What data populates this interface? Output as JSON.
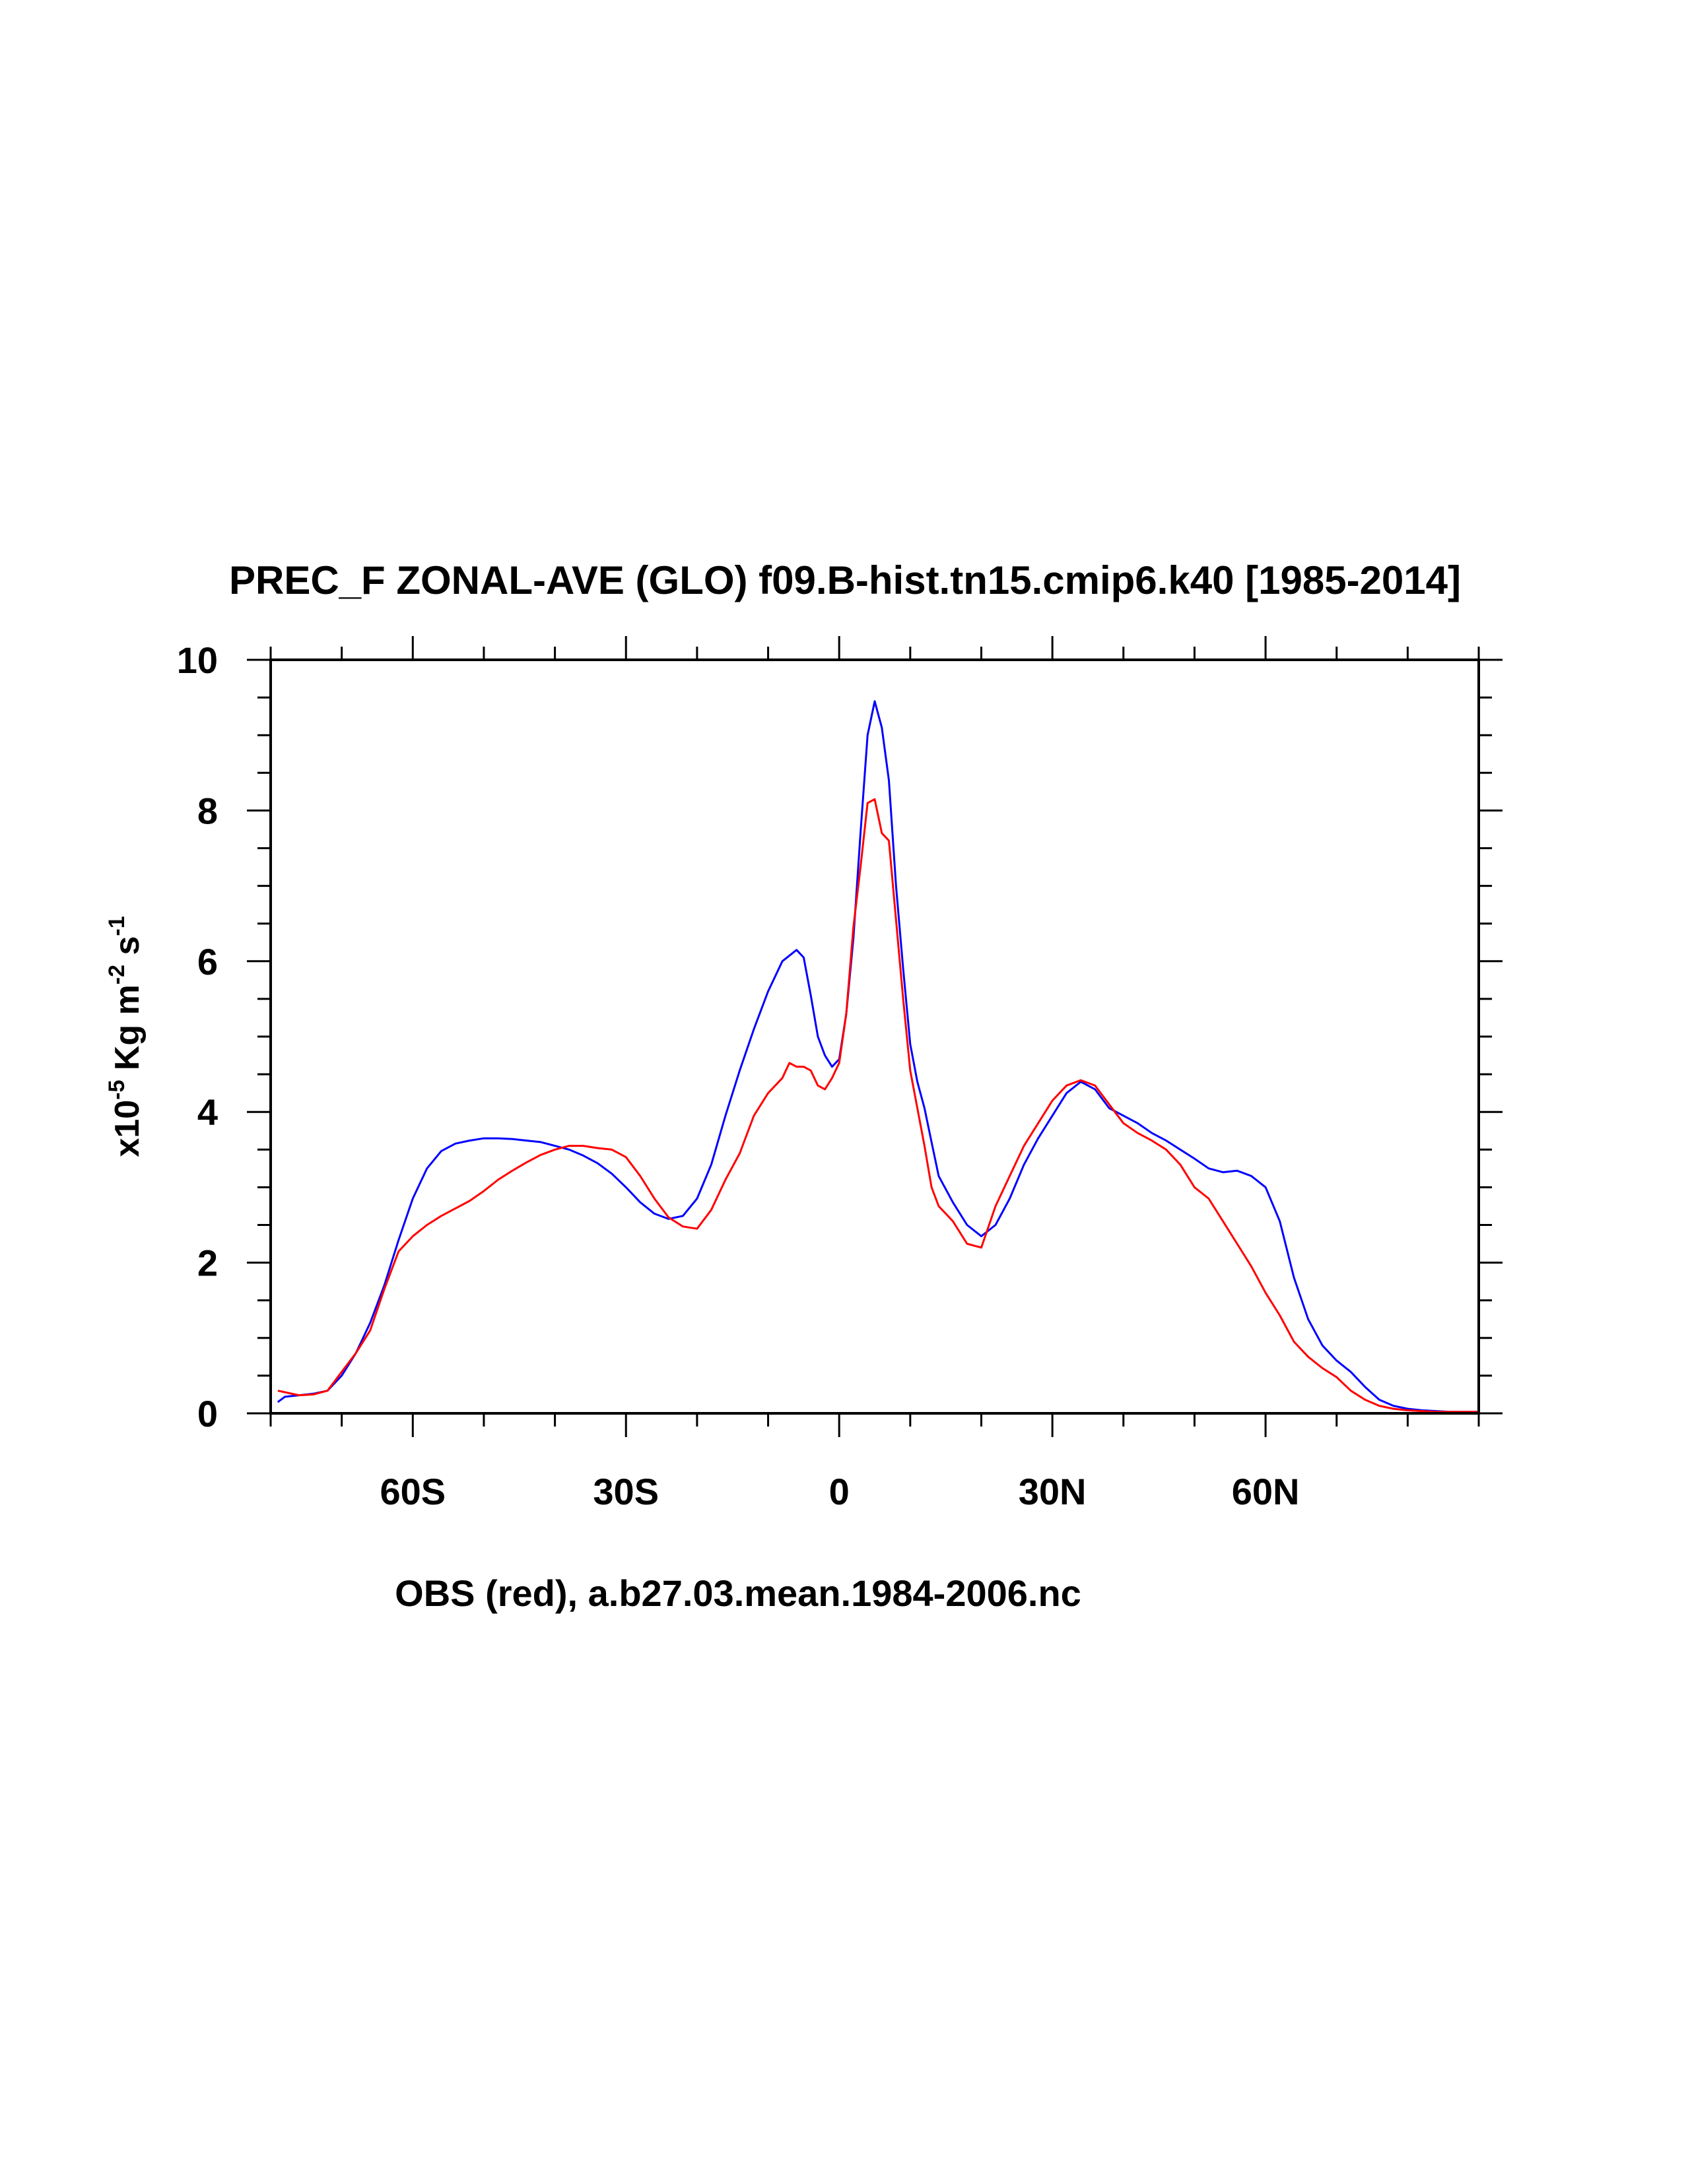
{
  "chart_data": {
    "type": "line",
    "title": "PREC_F ZONAL-AVE (GLO) f09.B-hist.tn15.cmip6.k40 [1985-2014]",
    "xlabel": "OBS (red), a.b27.03.mean.1984-2006.nc",
    "ylabel": {
      "base": "x10",
      "exp1": "-5",
      "mid": " Kg m",
      "exp2": "-2",
      "mid2": " s",
      "exp3": "-1"
    },
    "xlim": [
      -80,
      90
    ],
    "ylim": [
      0,
      10
    ],
    "x_ticks": [
      {
        "value": -60,
        "label": "60S"
      },
      {
        "value": -30,
        "label": "30S"
      },
      {
        "value": 0,
        "label": "0"
      },
      {
        "value": 30,
        "label": "30N"
      },
      {
        "value": 60,
        "label": "60N"
      }
    ],
    "y_ticks": [
      {
        "value": 0,
        "label": "0"
      },
      {
        "value": 2,
        "label": "2"
      },
      {
        "value": 4,
        "label": "4"
      },
      {
        "value": 6,
        "label": "6"
      },
      {
        "value": 8,
        "label": "8"
      },
      {
        "value": 10,
        "label": "10"
      }
    ],
    "x_minor_step": 10,
    "y_minor_step": 0.5,
    "grid": false,
    "series": [
      {
        "color": "#0000ff",
        "x": [
          -79,
          -78,
          -76,
          -74,
          -72,
          -70,
          -68,
          -66,
          -64,
          -62,
          -60,
          -58,
          -56,
          -54,
          -52,
          -50,
          -48,
          -46,
          -44,
          -42,
          -40,
          -38,
          -36,
          -34,
          -32,
          -30,
          -28,
          -26,
          -24,
          -22,
          -20,
          -18,
          -16,
          -14,
          -12,
          -10,
          -8,
          -6,
          -5,
          -4,
          -3,
          -2,
          -1,
          0,
          1,
          2,
          3,
          4,
          5,
          6,
          7,
          8,
          9,
          10,
          11,
          12,
          13,
          14,
          16,
          18,
          20,
          22,
          24,
          26,
          28,
          30,
          32,
          34,
          36,
          38,
          40,
          42,
          44,
          46,
          48,
          50,
          52,
          54,
          56,
          58,
          60,
          62,
          64,
          66,
          68,
          70,
          72,
          74,
          76,
          78,
          80,
          82,
          84,
          86,
          88,
          90
        ],
        "y": [
          0.15,
          0.22,
          0.24,
          0.26,
          0.3,
          0.5,
          0.8,
          1.2,
          1.7,
          2.3,
          2.85,
          3.25,
          3.48,
          3.58,
          3.62,
          3.65,
          3.65,
          3.64,
          3.62,
          3.6,
          3.55,
          3.5,
          3.42,
          3.32,
          3.18,
          3.0,
          2.8,
          2.65,
          2.58,
          2.62,
          2.85,
          3.3,
          3.95,
          4.55,
          5.1,
          5.6,
          6.0,
          6.15,
          6.05,
          5.55,
          5.0,
          4.75,
          4.6,
          4.7,
          5.3,
          6.3,
          7.7,
          9.0,
          9.45,
          9.1,
          8.4,
          7.0,
          5.9,
          4.9,
          4.4,
          4.05,
          3.6,
          3.15,
          2.8,
          2.5,
          2.35,
          2.5,
          2.85,
          3.3,
          3.65,
          3.95,
          4.25,
          4.4,
          4.3,
          4.05,
          3.95,
          3.85,
          3.72,
          3.62,
          3.5,
          3.38,
          3.25,
          3.2,
          3.22,
          3.15,
          3.0,
          2.55,
          1.8,
          1.25,
          0.9,
          0.7,
          0.55,
          0.35,
          0.18,
          0.1,
          0.06,
          0.04,
          0.03,
          0.02,
          0.02,
          0.02
        ]
      },
      {
        "color": "#ff0000",
        "x": [
          -79,
          -78,
          -76,
          -74,
          -72,
          -70,
          -68,
          -66,
          -64,
          -62,
          -60,
          -58,
          -56,
          -54,
          -52,
          -50,
          -48,
          -46,
          -44,
          -42,
          -40,
          -38,
          -36,
          -34,
          -32,
          -30,
          -28,
          -26,
          -24,
          -22,
          -20,
          -18,
          -16,
          -14,
          -12,
          -10,
          -8,
          -7,
          -6,
          -5,
          -4,
          -3,
          -2,
          -1,
          0,
          1,
          2,
          3,
          4,
          5,
          6,
          7,
          8,
          9,
          10,
          11,
          12,
          13,
          14,
          16,
          18,
          20,
          22,
          24,
          26,
          28,
          30,
          32,
          34,
          36,
          38,
          40,
          42,
          44,
          46,
          48,
          50,
          52,
          54,
          56,
          58,
          60,
          62,
          64,
          66,
          68,
          70,
          72,
          74,
          76,
          78,
          80,
          82,
          84,
          86,
          88,
          90
        ],
        "y": [
          0.3,
          0.28,
          0.24,
          0.25,
          0.3,
          0.55,
          0.8,
          1.1,
          1.65,
          2.15,
          2.35,
          2.5,
          2.62,
          2.72,
          2.82,
          2.95,
          3.1,
          3.22,
          3.33,
          3.43,
          3.5,
          3.55,
          3.55,
          3.52,
          3.5,
          3.4,
          3.15,
          2.85,
          2.6,
          2.48,
          2.45,
          2.7,
          3.1,
          3.45,
          3.95,
          4.25,
          4.45,
          4.65,
          4.6,
          4.6,
          4.55,
          4.35,
          4.3,
          4.45,
          4.65,
          5.3,
          6.45,
          7.25,
          8.1,
          8.15,
          7.7,
          7.6,
          6.55,
          5.5,
          4.55,
          4.05,
          3.55,
          3.0,
          2.75,
          2.55,
          2.25,
          2.2,
          2.75,
          3.15,
          3.55,
          3.85,
          4.15,
          4.35,
          4.42,
          4.35,
          4.1,
          3.85,
          3.72,
          3.62,
          3.5,
          3.3,
          3.0,
          2.85,
          2.55,
          2.25,
          1.95,
          1.6,
          1.3,
          0.95,
          0.75,
          0.6,
          0.48,
          0.3,
          0.18,
          0.1,
          0.06,
          0.04,
          0.03,
          0.02,
          0.02,
          0.02,
          0.02
        ]
      }
    ]
  }
}
